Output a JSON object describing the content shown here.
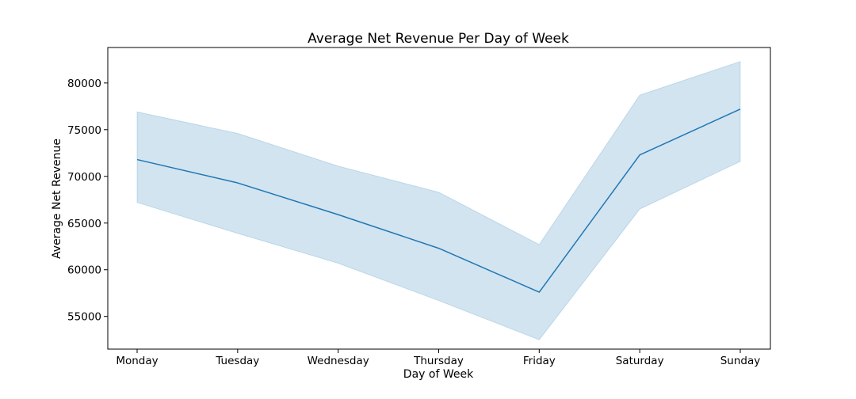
{
  "chart_data": {
    "type": "line",
    "title": "Average Net Revenue Per Day of Week",
    "xlabel": "Day of Week",
    "ylabel": "Average Net Revenue",
    "categories": [
      "Monday",
      "Tuesday",
      "Wednesday",
      "Thursday",
      "Friday",
      "Saturday",
      "Sunday"
    ],
    "series": [
      {
        "values": [
          71800,
          69300,
          65900,
          62300,
          57600,
          72300,
          77200
        ],
        "ci_lower": [
          67200,
          63900,
          60700,
          56700,
          52500,
          66500,
          71600
        ],
        "ci_upper": [
          76900,
          74600,
          71100,
          68300,
          62700,
          78700,
          82300
        ],
        "color": "#1f77b4",
        "band_color": "#1f77b4"
      }
    ],
    "yticks": [
      55000,
      60000,
      65000,
      70000,
      75000,
      80000
    ],
    "ylim": [
      51500,
      83800
    ],
    "grid": false,
    "legend": "none"
  }
}
